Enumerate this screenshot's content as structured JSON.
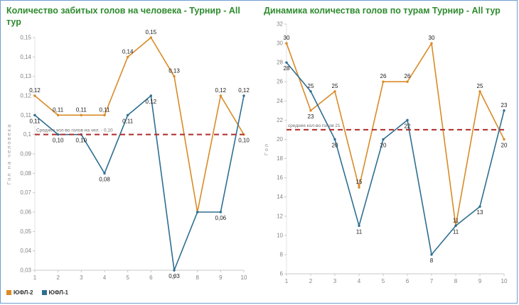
{
  "page": {
    "border_color": "#6f9fd0",
    "background": "#ffffff"
  },
  "chart_data": [
    {
      "type": "line",
      "title": "Количество забитых голов на человека - Турнир - All тур",
      "title_color": "#2e8b2e",
      "ylabel": "Гол на человека",
      "categories": [
        "1",
        "2",
        "3",
        "4",
        "5",
        "6",
        "7",
        "8",
        "9",
        "10"
      ],
      "ylim": [
        0.03,
        0.15
      ],
      "ytick_step": 0.01,
      "decimal_comma": true,
      "grid": false,
      "legend_position": "bottom-left",
      "avg_line": {
        "value": 0.1,
        "label": "Среднее кол-во голов на чел. - 0,10",
        "color": "#b02a2a"
      },
      "series": [
        {
          "name": "ЮФЛ-2",
          "color": "#d98b27",
          "values": [
            0.12,
            0.11,
            0.11,
            0.11,
            0.14,
            0.15,
            0.13,
            0.06,
            0.12,
            0.1
          ],
          "labels": [
            "0,12",
            "0,11",
            "0,11",
            "0,11",
            "0,14",
            "0,15",
            "0,13",
            "",
            "0,12",
            "0,10"
          ]
        },
        {
          "name": "ЮФЛ-1",
          "color": "#2e6f91",
          "values": [
            0.11,
            0.1,
            0.1,
            0.08,
            0.11,
            0.12,
            0.03,
            0.06,
            0.06,
            0.12
          ],
          "labels": [
            "0,11",
            "0,10",
            "0,10",
            "0,08",
            "0,11",
            "0,12",
            "0,03",
            "",
            "0,06",
            "0,12"
          ]
        }
      ]
    },
    {
      "type": "line",
      "title": "Динамика количества голов по турам Турнир - All тур",
      "title_color": "#2e8b2e",
      "ylabel": "Гол",
      "categories": [
        "1",
        "2",
        "3",
        "4",
        "5",
        "6",
        "7",
        "8",
        "9",
        "10"
      ],
      "ylim": [
        6,
        32
      ],
      "ytick_step": 2,
      "decimal_comma": false,
      "grid": false,
      "legend_position": "none",
      "avg_line": {
        "value": 21,
        "label": "среднее кол-во голов 21",
        "color": "#b02a2a"
      },
      "series": [
        {
          "name": "ЮФЛ-2",
          "color": "#d98b27",
          "values": [
            30,
            23,
            25,
            15,
            26,
            26,
            30,
            11,
            25,
            20
          ],
          "labels": [
            "30",
            "23",
            "25",
            "15",
            "26",
            "26",
            "30",
            "11",
            "25",
            "20"
          ]
        },
        {
          "name": "ЮФЛ-1",
          "color": "#2e6f91",
          "values": [
            28,
            25,
            20,
            11,
            20,
            22,
            8,
            11,
            13,
            23
          ],
          "labels": [
            "28",
            "25",
            "20",
            "11",
            "20",
            "22",
            "8",
            "11",
            "13",
            "23"
          ]
        }
      ]
    }
  ]
}
